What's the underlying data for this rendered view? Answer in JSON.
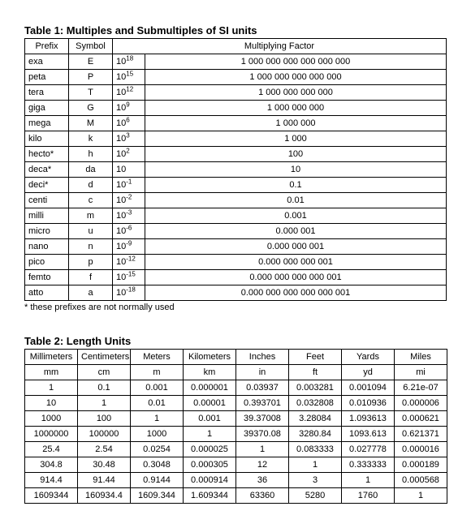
{
  "table1": {
    "title": "Table 1:  Multiples and Submultiples of SI units",
    "headers": {
      "prefix": "Prefix",
      "symbol": "Symbol",
      "factor": "Multiplying Factor"
    },
    "rows": [
      {
        "prefix": "exa",
        "symbol": "E",
        "base": "10",
        "exp": "18",
        "factor": "1 000 000 000 000 000 000"
      },
      {
        "prefix": "peta",
        "symbol": "P",
        "base": "10",
        "exp": "15",
        "factor": "1 000 000 000 000 000"
      },
      {
        "prefix": "tera",
        "symbol": "T",
        "base": "10",
        "exp": "12",
        "factor": "1 000 000 000 000"
      },
      {
        "prefix": "giga",
        "symbol": "G",
        "base": "10",
        "exp": "9",
        "factor": "1 000 000 000"
      },
      {
        "prefix": "mega",
        "symbol": "M",
        "base": "10",
        "exp": "6",
        "factor": "1 000 000"
      },
      {
        "prefix": "kilo",
        "symbol": "k",
        "base": "10",
        "exp": "3",
        "factor": "1 000"
      },
      {
        "prefix": "hecto*",
        "symbol": "h",
        "base": "10",
        "exp": "2",
        "factor": "100"
      },
      {
        "prefix": "deca*",
        "symbol": "da",
        "base": "10",
        "exp": "",
        "factor": "10"
      },
      {
        "prefix": "deci*",
        "symbol": "d",
        "base": "10",
        "exp": "-1",
        "factor": "0.1"
      },
      {
        "prefix": "centi",
        "symbol": "c",
        "base": "10",
        "exp": "-2",
        "factor": "0.01"
      },
      {
        "prefix": "milli",
        "symbol": "m",
        "base": "10",
        "exp": "-3",
        "factor": "0.001"
      },
      {
        "prefix": "micro",
        "symbol": "u",
        "base": "10",
        "exp": "-6",
        "factor": "0.000 001"
      },
      {
        "prefix": "nano",
        "symbol": "n",
        "base": "10",
        "exp": "-9",
        "factor": "0.000 000 001"
      },
      {
        "prefix": "pico",
        "symbol": "p",
        "base": "10",
        "exp": "-12",
        "factor": "0.000 000 000 001"
      },
      {
        "prefix": "femto",
        "symbol": "f",
        "base": "10",
        "exp": "-15",
        "factor": "0.000 000 000 000 001"
      },
      {
        "prefix": "atto",
        "symbol": "a",
        "base": "10",
        "exp": "-18",
        "factor": "0.000 000 000 000 000 001"
      }
    ],
    "footnote": "* these prefixes are not normally used"
  },
  "table2": {
    "title": "Table 2:  Length Units",
    "headers": [
      "Millimeters",
      "Centimeters",
      "Meters",
      "Kilometers",
      "Inches",
      "Feet",
      "Yards",
      "Miles"
    ],
    "symbols": [
      "mm",
      "cm",
      "m",
      "km",
      "in",
      "ft",
      "yd",
      "mi"
    ],
    "rows": [
      [
        "1",
        "0.1",
        "0.001",
        "0.000001",
        "0.03937",
        "0.003281",
        "0.001094",
        "6.21e-07"
      ],
      [
        "10",
        "1",
        "0.01",
        "0.00001",
        "0.393701",
        "0.032808",
        "0.010936",
        "0.000006"
      ],
      [
        "1000",
        "100",
        "1",
        "0.001",
        "39.37008",
        "3.28084",
        "1.093613",
        "0.000621"
      ],
      [
        "1000000",
        "100000",
        "1000",
        "1",
        "39370.08",
        "3280.84",
        "1093.613",
        "0.621371"
      ],
      [
        "25.4",
        "2.54",
        "0.0254",
        "0.000025",
        "1",
        "0.083333",
        "0.027778",
        "0.000016"
      ],
      [
        "304.8",
        "30.48",
        "0.3048",
        "0.000305",
        "12",
        "1",
        "0.333333",
        "0.000189"
      ],
      [
        "914.4",
        "91.44",
        "0.9144",
        "0.000914",
        "36",
        "3",
        "1",
        "0.000568"
      ],
      [
        "1609344",
        "160934.4",
        "1609.344",
        "1.609344",
        "63360",
        "5280",
        "1760",
        "1"
      ]
    ]
  }
}
